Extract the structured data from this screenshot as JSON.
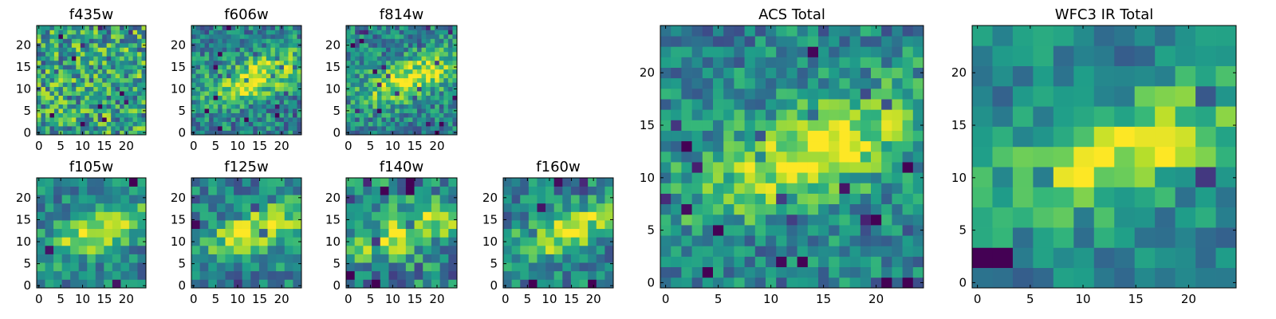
{
  "chart_data": [
    {
      "type": "heatmap",
      "title": "f435w",
      "grid": [
        25,
        25
      ],
      "xticks": [
        0,
        5,
        10,
        15,
        20
      ],
      "yticks": [
        0,
        5,
        10,
        15,
        20
      ],
      "xlim": [
        -0.5,
        24.5
      ],
      "ylim": [
        -0.5,
        24.5
      ],
      "colormap": "viridis",
      "source": "cutout",
      "noise": 0.34,
      "feature": "diffuse",
      "seed": 11
    },
    {
      "type": "heatmap",
      "title": "f606w",
      "grid": [
        25,
        25
      ],
      "xticks": [
        0,
        5,
        10,
        15,
        20
      ],
      "yticks": [
        0,
        5,
        10,
        15,
        20
      ],
      "xlim": [
        -0.5,
        24.5
      ],
      "ylim": [
        -0.5,
        24.5
      ],
      "colormap": "viridis",
      "source": "cutout",
      "noise": 0.25,
      "feature": "streak",
      "seed": 23
    },
    {
      "type": "heatmap",
      "title": "f814w",
      "grid": [
        25,
        25
      ],
      "xticks": [
        0,
        5,
        10,
        15,
        20
      ],
      "yticks": [
        0,
        5,
        10,
        15,
        20
      ],
      "xlim": [
        -0.5,
        24.5
      ],
      "ylim": [
        -0.5,
        24.5
      ],
      "colormap": "viridis",
      "source": "cutout",
      "noise": 0.24,
      "feature": "streak",
      "seed": 37
    },
    {
      "type": "heatmap",
      "title": "f105w",
      "grid": [
        13,
        13
      ],
      "xticks": [
        0,
        5,
        10,
        15,
        20
      ],
      "yticks": [
        0,
        5,
        10,
        15,
        20
      ],
      "xlim": [
        -0.5,
        24.5
      ],
      "ylim": [
        -0.5,
        24.5
      ],
      "colormap": "viridis",
      "source": "cutout",
      "noise": 0.2,
      "feature": "streak",
      "seed": 41
    },
    {
      "type": "heatmap",
      "title": "f125w",
      "grid": [
        13,
        13
      ],
      "xticks": [
        0,
        5,
        10,
        15,
        20
      ],
      "yticks": [
        0,
        5,
        10,
        15,
        20
      ],
      "xlim": [
        -0.5,
        24.5
      ],
      "ylim": [
        -0.5,
        24.5
      ],
      "colormap": "viridis",
      "source": "cutout",
      "noise": 0.22,
      "feature": "streak",
      "seed": 53
    },
    {
      "type": "heatmap",
      "title": "f140w",
      "grid": [
        13,
        13
      ],
      "xticks": [
        0,
        5,
        10,
        15,
        20
      ],
      "yticks": [
        0,
        5,
        10,
        15,
        20
      ],
      "xlim": [
        -0.5,
        24.5
      ],
      "ylim": [
        -0.5,
        24.5
      ],
      "colormap": "viridis",
      "source": "cutout",
      "noise": 0.27,
      "feature": "streak",
      "seed": 67
    },
    {
      "type": "heatmap",
      "title": "f160w",
      "grid": [
        13,
        13
      ],
      "xticks": [
        0,
        5,
        10,
        15,
        20
      ],
      "yticks": [
        0,
        5,
        10,
        15,
        20
      ],
      "xlim": [
        -0.5,
        24.5
      ],
      "ylim": [
        -0.5,
        24.5
      ],
      "colormap": "viridis",
      "source": "cutout",
      "noise": 0.22,
      "feature": "streak",
      "seed": 79
    },
    {
      "type": "heatmap",
      "title": "ACS Total",
      "grid": [
        25,
        25
      ],
      "xticks": [
        0,
        5,
        10,
        15,
        20
      ],
      "yticks": [
        0,
        5,
        10,
        15,
        20
      ],
      "xlim": [
        -0.5,
        24.5
      ],
      "ylim": [
        -0.5,
        24.5
      ],
      "colormap": "viridis",
      "source": "sum",
      "noise": 0.22,
      "feature": "streak",
      "seed": 83
    },
    {
      "type": "heatmap",
      "title": "WFC3 IR Total",
      "grid": [
        13,
        13
      ],
      "xticks": [
        0,
        5,
        10,
        15,
        20
      ],
      "yticks": [
        0,
        5,
        10,
        15,
        20
      ],
      "xlim": [
        -0.5,
        24.5
      ],
      "ylim": [
        -0.5,
        24.5
      ],
      "colormap": "viridis",
      "source": "sum",
      "noise": 0.17,
      "feature": "streak",
      "seed": 97
    }
  ]
}
